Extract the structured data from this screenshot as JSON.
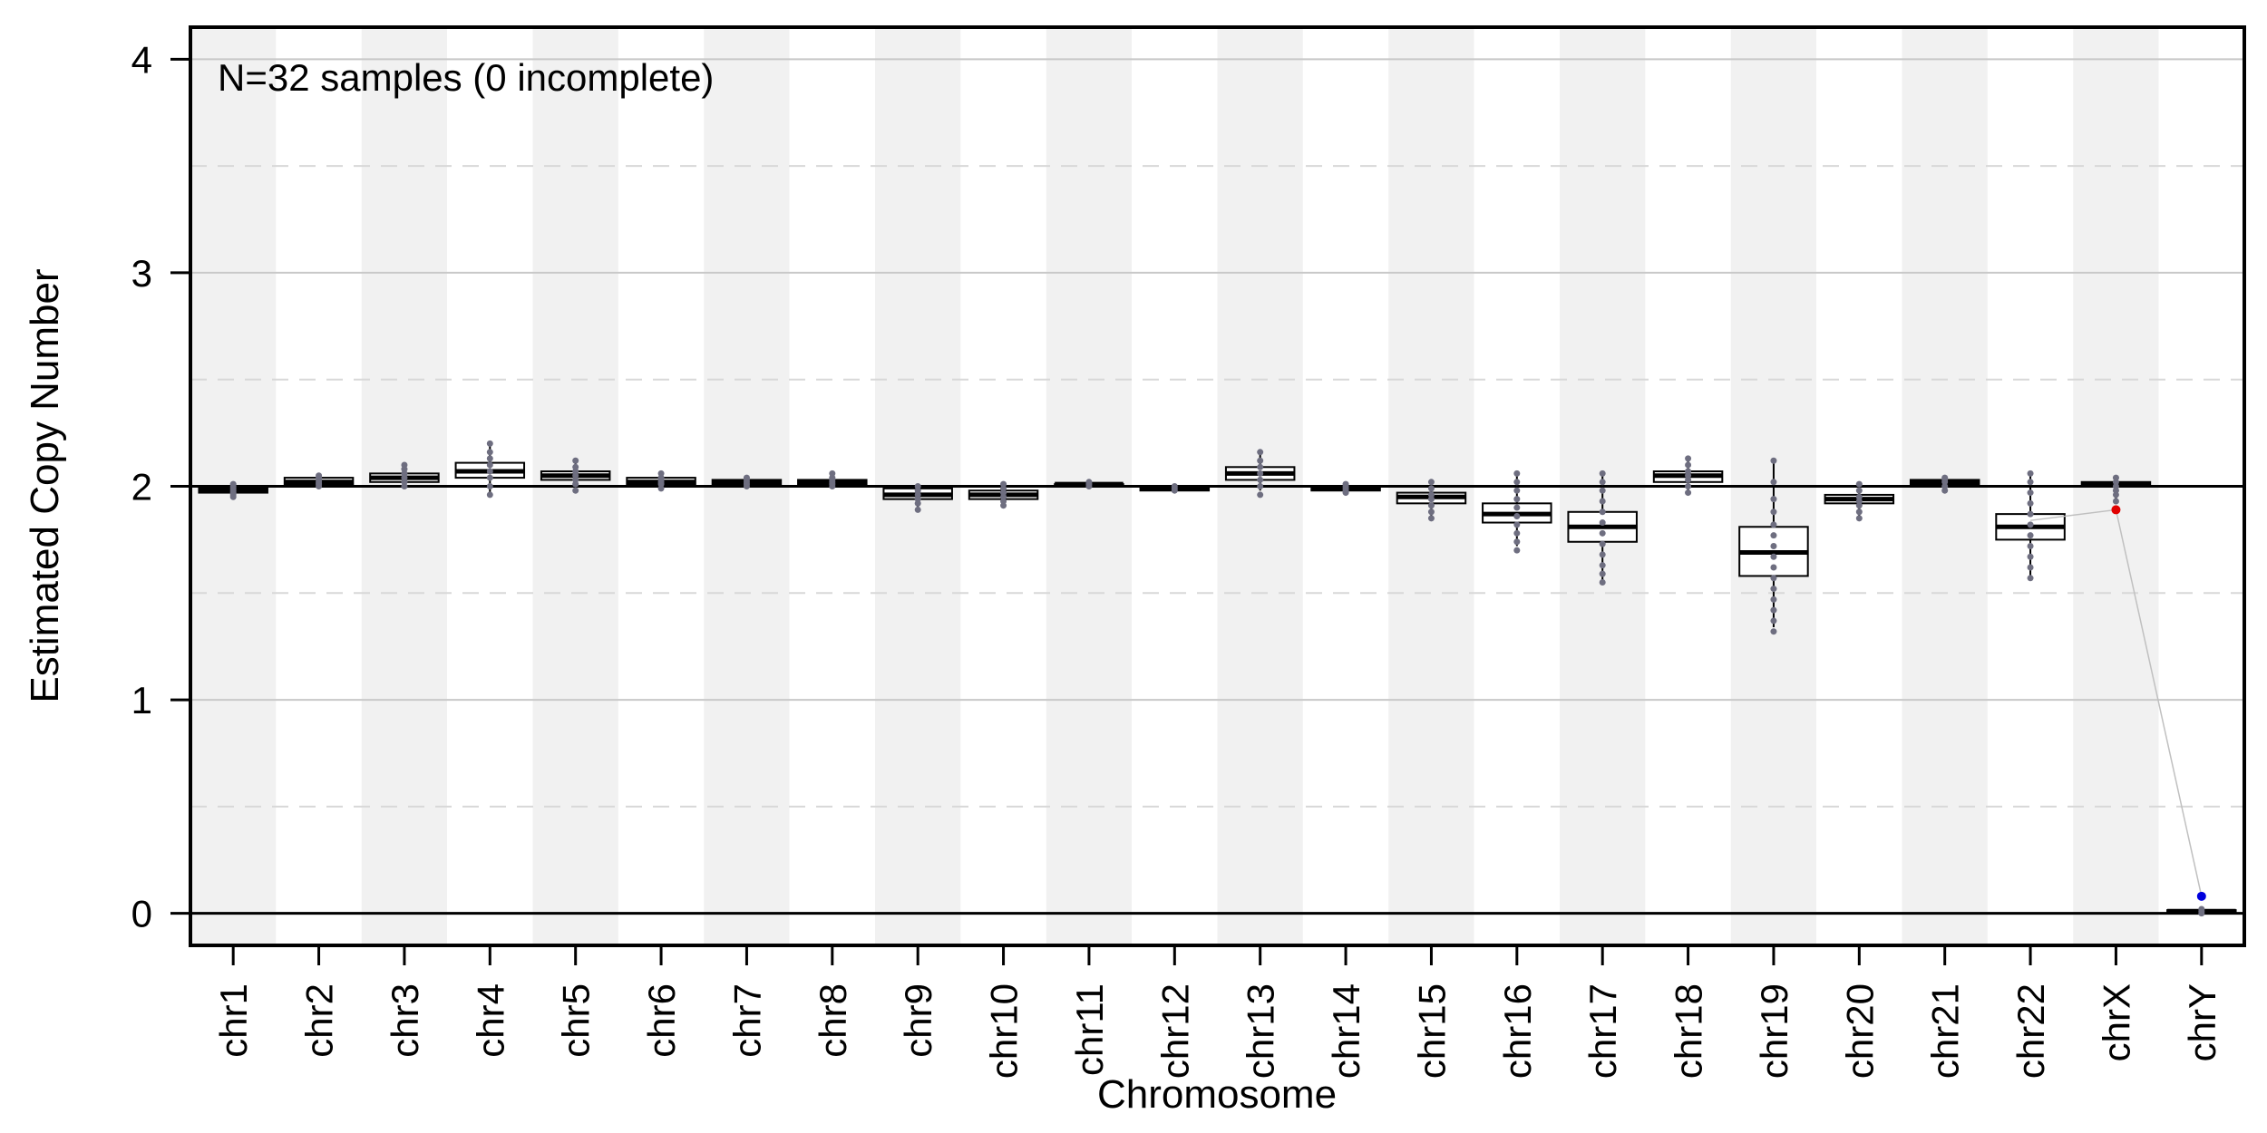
{
  "chart_data": {
    "type": "box",
    "title": "",
    "annotation": "N=32 samples (0 incomplete)",
    "xlabel": "Chromosome",
    "ylabel": "Estimated Copy Number",
    "ylim": [
      -0.15,
      4.15
    ],
    "yticks": [
      0,
      1,
      2,
      3,
      4
    ],
    "grid": {
      "major": [
        1,
        2,
        3,
        4
      ],
      "minor_dashed": [
        0.5,
        1.5,
        2.5,
        3.5
      ],
      "reference_lines": [
        0,
        2
      ]
    },
    "band_colors": {
      "shaded": "#f1f1f1",
      "plain": "#ffffff"
    },
    "colors": {
      "box": "#000000",
      "points": "#6e6e80",
      "highlight_red": "#e00000",
      "highlight_blue": "#0000dd",
      "connector": "#c0c0c0"
    },
    "categories": [
      "chr1",
      "chr2",
      "chr3",
      "chr4",
      "chr5",
      "chr6",
      "chr7",
      "chr8",
      "chr9",
      "chr10",
      "chr11",
      "chr12",
      "chr13",
      "chr14",
      "chr15",
      "chr16",
      "chr17",
      "chr18",
      "chr19",
      "chr20",
      "chr21",
      "chr22",
      "chrX",
      "chrY"
    ],
    "boxes": [
      {
        "q1": 1.97,
        "median": 1.98,
        "q3": 1.99,
        "wlo": 1.96,
        "whi": 2.0,
        "points": [
          1.95,
          1.96,
          1.97,
          1.98,
          1.99,
          2.0,
          2.01
        ]
      },
      {
        "q1": 2.01,
        "median": 2.02,
        "q3": 2.04,
        "wlo": 2.0,
        "whi": 2.05,
        "points": [
          2.0,
          2.01,
          2.02,
          2.03,
          2.04,
          2.05
        ]
      },
      {
        "q1": 2.02,
        "median": 2.04,
        "q3": 2.06,
        "wlo": 2.0,
        "whi": 2.09,
        "points": [
          2.0,
          2.02,
          2.04,
          2.06,
          2.08,
          2.1
        ]
      },
      {
        "q1": 2.04,
        "median": 2.07,
        "q3": 2.11,
        "wlo": 1.97,
        "whi": 2.2,
        "points": [
          1.96,
          2.0,
          2.04,
          2.07,
          2.1,
          2.13,
          2.16,
          2.2
        ]
      },
      {
        "q1": 2.03,
        "median": 2.05,
        "q3": 2.07,
        "wlo": 1.99,
        "whi": 2.12,
        "points": [
          1.98,
          2.01,
          2.03,
          2.05,
          2.07,
          2.09,
          2.12
        ]
      },
      {
        "q1": 2.01,
        "median": 2.02,
        "q3": 2.04,
        "wlo": 2.0,
        "whi": 2.06,
        "points": [
          1.99,
          2.01,
          2.02,
          2.03,
          2.04,
          2.06
        ]
      },
      {
        "q1": 2.01,
        "median": 2.02,
        "q3": 2.03,
        "wlo": 2.0,
        "whi": 2.04,
        "points": [
          2.0,
          2.01,
          2.02,
          2.03,
          2.04
        ]
      },
      {
        "q1": 2.01,
        "median": 2.02,
        "q3": 2.03,
        "wlo": 2.0,
        "whi": 2.05,
        "points": [
          2.0,
          2.01,
          2.02,
          2.03,
          2.04,
          2.06
        ]
      },
      {
        "q1": 1.94,
        "median": 1.96,
        "q3": 1.99,
        "wlo": 1.9,
        "whi": 2.0,
        "points": [
          1.89,
          1.92,
          1.94,
          1.96,
          1.98,
          2.0
        ]
      },
      {
        "q1": 1.94,
        "median": 1.96,
        "q3": 1.98,
        "wlo": 1.91,
        "whi": 2.0,
        "points": [
          1.91,
          1.93,
          1.95,
          1.97,
          1.99,
          2.01
        ]
      },
      {
        "q1": 2.0,
        "median": 2.01,
        "q3": 2.01,
        "wlo": 2.0,
        "whi": 2.02,
        "points": [
          2.0,
          2.01,
          2.02
        ]
      },
      {
        "q1": 1.98,
        "median": 1.99,
        "q3": 1.99,
        "wlo": 1.98,
        "whi": 2.0,
        "points": [
          1.98,
          1.99,
          2.0
        ]
      },
      {
        "q1": 2.03,
        "median": 2.06,
        "q3": 2.09,
        "wlo": 1.98,
        "whi": 2.16,
        "points": [
          1.96,
          2.0,
          2.03,
          2.06,
          2.09,
          2.12,
          2.16
        ]
      },
      {
        "q1": 1.98,
        "median": 1.99,
        "q3": 2.0,
        "wlo": 1.97,
        "whi": 2.01,
        "points": [
          1.97,
          1.98,
          1.99,
          2.0,
          2.01
        ]
      },
      {
        "q1": 1.92,
        "median": 1.95,
        "q3": 1.97,
        "wlo": 1.86,
        "whi": 2.02,
        "points": [
          1.85,
          1.88,
          1.91,
          1.94,
          1.96,
          1.99,
          2.02
        ]
      },
      {
        "q1": 1.83,
        "median": 1.87,
        "q3": 1.92,
        "wlo": 1.72,
        "whi": 2.06,
        "points": [
          1.7,
          1.74,
          1.78,
          1.82,
          1.86,
          1.9,
          1.94,
          1.98,
          2.02,
          2.06
        ]
      },
      {
        "q1": 1.74,
        "median": 1.81,
        "q3": 1.88,
        "wlo": 1.56,
        "whi": 2.06,
        "points": [
          1.55,
          1.59,
          1.63,
          1.68,
          1.73,
          1.78,
          1.83,
          1.88,
          1.93,
          1.98,
          2.02,
          2.06
        ]
      },
      {
        "q1": 2.02,
        "median": 2.05,
        "q3": 2.07,
        "wlo": 1.98,
        "whi": 2.12,
        "points": [
          1.97,
          2.0,
          2.03,
          2.05,
          2.07,
          2.1,
          2.13
        ]
      },
      {
        "q1": 1.58,
        "median": 1.69,
        "q3": 1.81,
        "wlo": 1.34,
        "whi": 2.12,
        "points": [
          1.32,
          1.37,
          1.42,
          1.47,
          1.52,
          1.57,
          1.62,
          1.67,
          1.72,
          1.77,
          1.82,
          1.88,
          1.94,
          2.02,
          2.12
        ]
      },
      {
        "q1": 1.92,
        "median": 1.94,
        "q3": 1.96,
        "wlo": 1.86,
        "whi": 2.02,
        "points": [
          1.85,
          1.88,
          1.91,
          1.93,
          1.95,
          1.98,
          2.01
        ]
      },
      {
        "q1": 2.01,
        "median": 2.02,
        "q3": 2.03,
        "wlo": 1.98,
        "whi": 2.04,
        "points": [
          1.98,
          2.0,
          2.02,
          2.03,
          2.04
        ]
      },
      {
        "q1": 1.75,
        "median": 1.81,
        "q3": 1.87,
        "wlo": 1.58,
        "whi": 2.06,
        "points": [
          1.57,
          1.62,
          1.67,
          1.72,
          1.77,
          1.82,
          1.87,
          1.92,
          1.97,
          2.02,
          2.06
        ]
      },
      {
        "q1": 2.0,
        "median": 2.01,
        "q3": 2.02,
        "wlo": 1.94,
        "whi": 2.04,
        "points": [
          1.93,
          1.96,
          1.98,
          2.0,
          2.02,
          2.04
        ],
        "highlight": {
          "value": 1.89,
          "color": "red"
        }
      },
      {
        "q1": 0.005,
        "median": 0.01,
        "q3": 0.015,
        "wlo": 0.0,
        "whi": 0.02,
        "points": [
          0.0,
          0.01,
          0.02
        ],
        "highlight": {
          "value": 0.08,
          "color": "blue"
        }
      }
    ],
    "connector_line": [
      {
        "category": "chr22",
        "value": 1.84
      },
      {
        "category": "chrX",
        "value": 1.89
      },
      {
        "category": "chrY",
        "value": 0.08
      }
    ]
  }
}
